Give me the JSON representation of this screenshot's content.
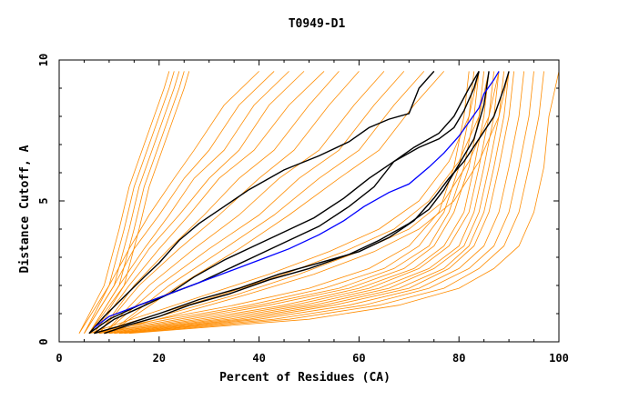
{
  "chart_data": {
    "type": "line",
    "title": "T0949-D1",
    "xlabel": "Percent of Residues (CA)",
    "ylabel": "Distance Cutoff, A",
    "xlim": [
      0,
      100
    ],
    "ylim": [
      0,
      10
    ],
    "xticks": [
      0,
      20,
      40,
      60,
      80,
      100
    ],
    "yticks": [
      0,
      5,
      10
    ],
    "grid": false,
    "colors": {
      "background_models": "#ff8c00",
      "highlight_models": "#000000",
      "reference_model": "#0000ff"
    },
    "highlight_series": [
      {
        "x": [
          6,
          9,
          13,
          17,
          20,
          24,
          28,
          33,
          38,
          45,
          52,
          58,
          62,
          66,
          70,
          72,
          75
        ],
        "y": [
          0.3,
          0.9,
          1.6,
          2.3,
          2.8,
          3.6,
          4.2,
          4.8,
          5.4,
          6.1,
          6.6,
          7.1,
          7.6,
          7.9,
          8.1,
          9.0,
          9.6
        ]
      },
      {
        "x": [
          6,
          10,
          16,
          22,
          28,
          34,
          40,
          46,
          52,
          58,
          63,
          67,
          71,
          76,
          79,
          82,
          84
        ],
        "y": [
          0.3,
          0.8,
          1.3,
          1.7,
          2.1,
          2.6,
          3.1,
          3.6,
          4.1,
          4.8,
          5.5,
          6.4,
          6.9,
          7.4,
          8.0,
          9.0,
          9.6
        ]
      },
      {
        "x": [
          7,
          11,
          16,
          22,
          27,
          33,
          39,
          45,
          51,
          57,
          62,
          67,
          72,
          76,
          79,
          81,
          83,
          84
        ],
        "y": [
          0.3,
          0.8,
          1.2,
          1.7,
          2.3,
          2.9,
          3.4,
          3.9,
          4.4,
          5.1,
          5.8,
          6.4,
          6.9,
          7.2,
          7.6,
          8.2,
          9.0,
          9.6
        ]
      },
      {
        "x": [
          9,
          14,
          20,
          26,
          34,
          42,
          50,
          58,
          64,
          70,
          74,
          77,
          79,
          81,
          83,
          85,
          86
        ],
        "y": [
          0.3,
          0.6,
          0.9,
          1.3,
          1.7,
          2.2,
          2.6,
          3.1,
          3.6,
          4.2,
          4.7,
          5.4,
          6.0,
          6.6,
          7.2,
          8.4,
          9.6
        ]
      },
      {
        "x": [
          7,
          13,
          20,
          28,
          36,
          44,
          52,
          60,
          66,
          71,
          75,
          78,
          81,
          84,
          87,
          89,
          90
        ],
        "y": [
          0.3,
          0.6,
          1.0,
          1.5,
          1.9,
          2.4,
          2.8,
          3.2,
          3.7,
          4.3,
          5.1,
          5.8,
          6.4,
          7.2,
          8.0,
          9.0,
          9.6
        ]
      }
    ],
    "reference_series": {
      "x": [
        7,
        10,
        16,
        22,
        28,
        34,
        40,
        46,
        52,
        57,
        61,
        66,
        70,
        74,
        77,
        80,
        82,
        84,
        85,
        87,
        88
      ],
      "y": [
        0.5,
        0.9,
        1.3,
        1.7,
        2.1,
        2.5,
        2.9,
        3.3,
        3.8,
        4.3,
        4.8,
        5.3,
        5.6,
        6.2,
        6.7,
        7.3,
        7.8,
        8.3,
        8.8,
        9.3,
        9.6
      ]
    },
    "background_series": [
      {
        "x": [
          4,
          9,
          12,
          14,
          17,
          19,
          21,
          22
        ],
        "y": [
          0.3,
          2,
          4,
          5.5,
          7,
          8,
          9,
          9.6
        ]
      },
      {
        "x": [
          5,
          10,
          13,
          15,
          18,
          20,
          22,
          23
        ],
        "y": [
          0.3,
          2,
          4,
          5.5,
          7,
          8,
          9,
          9.6
        ]
      },
      {
        "x": [
          5,
          11,
          14,
          16,
          19,
          21,
          23,
          24
        ],
        "y": [
          0.3,
          2,
          4,
          5.5,
          7,
          8,
          9,
          9.6
        ]
      },
      {
        "x": [
          6,
          12,
          15,
          17,
          20,
          22,
          24,
          25
        ],
        "y": [
          0.3,
          2,
          4,
          5.5,
          7,
          8,
          9,
          9.6
        ]
      },
      {
        "x": [
          6,
          13,
          16,
          18,
          21,
          23,
          25,
          26
        ],
        "y": [
          0.3,
          2,
          4,
          5.5,
          7,
          8,
          9,
          9.6
        ]
      },
      {
        "x": [
          4,
          10,
          14,
          18,
          23,
          27,
          33,
          40
        ],
        "y": [
          0.3,
          2,
          3.3,
          4.5,
          5.8,
          6.8,
          8.4,
          9.6
        ]
      },
      {
        "x": [
          5,
          11,
          15,
          20,
          25,
          30,
          36,
          43
        ],
        "y": [
          0.3,
          2,
          3.3,
          4.5,
          5.8,
          6.8,
          8.4,
          9.6
        ]
      },
      {
        "x": [
          6,
          12,
          17,
          22,
          27,
          33,
          39,
          46
        ],
        "y": [
          0.3,
          2,
          3.3,
          4.5,
          5.8,
          6.8,
          8.4,
          9.6
        ]
      },
      {
        "x": [
          7,
          13,
          18,
          24,
          30,
          36,
          42,
          49
        ],
        "y": [
          0.3,
          2,
          3.3,
          4.5,
          5.8,
          6.8,
          8.4,
          9.6
        ]
      },
      {
        "x": [
          7,
          14,
          20,
          26,
          32,
          39,
          46,
          53
        ],
        "y": [
          0.3,
          2,
          3.3,
          4.5,
          5.8,
          6.8,
          8.4,
          9.6
        ]
      },
      {
        "x": [
          8,
          15,
          22,
          29,
          36,
          43,
          50,
          56
        ],
        "y": [
          0.3,
          2,
          3.3,
          4.5,
          5.8,
          6.8,
          8.4,
          9.6
        ]
      },
      {
        "x": [
          8,
          16,
          24,
          32,
          40,
          47,
          54,
          60
        ],
        "y": [
          0.3,
          2,
          3.3,
          4.5,
          5.8,
          6.8,
          8.4,
          9.6
        ]
      },
      {
        "x": [
          9,
          18,
          27,
          36,
          44,
          52,
          59,
          65
        ],
        "y": [
          0.3,
          2,
          3.3,
          4.5,
          5.8,
          6.8,
          8.4,
          9.6
        ]
      },
      {
        "x": [
          9,
          20,
          30,
          40,
          48,
          56,
          63,
          69
        ],
        "y": [
          0.3,
          2,
          3.3,
          4.5,
          5.8,
          6.8,
          8.4,
          9.6
        ]
      },
      {
        "x": [
          10,
          22,
          33,
          43,
          52,
          60,
          67,
          73
        ],
        "y": [
          0.3,
          2,
          3.3,
          4.5,
          5.8,
          6.8,
          8.4,
          9.6
        ]
      },
      {
        "x": [
          10,
          24,
          36,
          46,
          56,
          64,
          71,
          77
        ],
        "y": [
          0.3,
          2,
          3.3,
          4.5,
          5.8,
          6.8,
          8.4,
          9.6
        ]
      },
      {
        "x": [
          6,
          20,
          35,
          50,
          62,
          70,
          76,
          79,
          81,
          82
        ],
        "y": [
          0.3,
          0.8,
          1.3,
          1.9,
          2.6,
          3.4,
          4.6,
          6.2,
          8.0,
          9.6
        ]
      },
      {
        "x": [
          7,
          22,
          38,
          53,
          65,
          72,
          77,
          80,
          82,
          83
        ],
        "y": [
          0.3,
          0.8,
          1.3,
          1.9,
          2.6,
          3.4,
          4.6,
          6.2,
          8.0,
          9.6
        ]
      },
      {
        "x": [
          8,
          24,
          40,
          56,
          67,
          74,
          78,
          81,
          83,
          84
        ],
        "y": [
          0.3,
          0.8,
          1.3,
          1.9,
          2.6,
          3.4,
          4.6,
          6.2,
          8.0,
          9.6
        ]
      },
      {
        "x": [
          8,
          26,
          42,
          58,
          69,
          75,
          79,
          82,
          84,
          85
        ],
        "y": [
          0.3,
          0.8,
          1.3,
          1.9,
          2.6,
          3.4,
          4.6,
          6.2,
          8.0,
          9.6
        ]
      },
      {
        "x": [
          9,
          28,
          45,
          60,
          71,
          77,
          81,
          83,
          85,
          86
        ],
        "y": [
          0.3,
          0.8,
          1.3,
          1.9,
          2.6,
          3.4,
          4.6,
          6.2,
          8.0,
          9.6
        ]
      },
      {
        "x": [
          9,
          30,
          47,
          62,
          72,
          78,
          82,
          84,
          86,
          87
        ],
        "y": [
          0.3,
          0.8,
          1.3,
          1.9,
          2.6,
          3.4,
          4.6,
          6.2,
          8.0,
          9.6
        ]
      },
      {
        "x": [
          10,
          32,
          49,
          64,
          74,
          80,
          83,
          85,
          87,
          88
        ],
        "y": [
          0.3,
          0.8,
          1.3,
          1.9,
          2.6,
          3.4,
          4.6,
          6.2,
          8.0,
          9.6
        ]
      },
      {
        "x": [
          10,
          34,
          51,
          66,
          75,
          81,
          84,
          86,
          88,
          89
        ],
        "y": [
          0.3,
          0.8,
          1.3,
          1.9,
          2.6,
          3.4,
          4.6,
          6.2,
          8.0,
          9.6
        ]
      },
      {
        "x": [
          11,
          36,
          53,
          68,
          77,
          82,
          85,
          87,
          89,
          90
        ],
        "y": [
          0.3,
          0.8,
          1.3,
          1.9,
          2.6,
          3.4,
          4.6,
          6.2,
          8.0,
          9.6
        ]
      },
      {
        "x": [
          11,
          38,
          55,
          70,
          78,
          83,
          86,
          88,
          90,
          91
        ],
        "y": [
          0.3,
          0.8,
          1.3,
          1.9,
          2.6,
          3.4,
          4.6,
          6.2,
          8.0,
          9.6
        ]
      },
      {
        "x": [
          12,
          40,
          58,
          72,
          80,
          85,
          88,
          90,
          92,
          93
        ],
        "y": [
          0.3,
          0.8,
          1.3,
          1.9,
          2.6,
          3.4,
          4.6,
          6.2,
          8.0,
          9.6
        ]
      },
      {
        "x": [
          12,
          43,
          61,
          74,
          82,
          87,
          90,
          92,
          94,
          95
        ],
        "y": [
          0.3,
          0.8,
          1.3,
          1.9,
          2.6,
          3.4,
          4.6,
          6.2,
          8.0,
          9.6
        ]
      },
      {
        "x": [
          13,
          46,
          64,
          77,
          84,
          89,
          92,
          94,
          96,
          97
        ],
        "y": [
          0.3,
          0.8,
          1.3,
          1.9,
          2.6,
          3.4,
          4.6,
          6.2,
          8.0,
          9.6
        ]
      },
      {
        "x": [
          14,
          50,
          68,
          80,
          87,
          92,
          95,
          97,
          98,
          100
        ],
        "y": [
          0.3,
          0.8,
          1.3,
          1.9,
          2.6,
          3.4,
          4.6,
          6.2,
          8.0,
          9.6
        ]
      },
      {
        "x": [
          6,
          18,
          30,
          42,
          54,
          64,
          72,
          78,
          82,
          84
        ],
        "y": [
          0.3,
          1.0,
          1.7,
          2.4,
          3.2,
          4.0,
          5.0,
          6.4,
          8.0,
          9.6
        ]
      },
      {
        "x": [
          7,
          20,
          33,
          45,
          57,
          67,
          74,
          80,
          84,
          86
        ],
        "y": [
          0.3,
          1.0,
          1.7,
          2.4,
          3.2,
          4.0,
          5.0,
          6.4,
          8.0,
          9.6
        ]
      },
      {
        "x": [
          8,
          22,
          36,
          48,
          60,
          70,
          77,
          82,
          86,
          88
        ],
        "y": [
          0.3,
          1.0,
          1.7,
          2.4,
          3.2,
          4.0,
          5.0,
          6.4,
          8.0,
          9.6
        ]
      },
      {
        "x": [
          9,
          24,
          38,
          51,
          63,
          72,
          79,
          84,
          88,
          90
        ],
        "y": [
          0.3,
          1.0,
          1.7,
          2.4,
          3.2,
          4.0,
          5.0,
          6.4,
          8.0,
          9.6
        ]
      }
    ]
  }
}
